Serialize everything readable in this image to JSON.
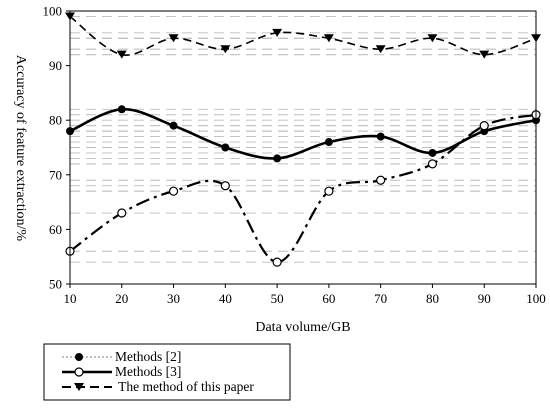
{
  "chart_data": {
    "type": "line",
    "xlabel": "Data volume/GB",
    "ylabel": "Accuracy of feature extraction/%",
    "x": [
      10,
      20,
      30,
      40,
      50,
      60,
      70,
      80,
      90,
      100
    ],
    "xlim": [
      10,
      100
    ],
    "ylim": [
      50,
      100
    ],
    "xticks": [
      "10",
      "20",
      "30",
      "40",
      "50",
      "60",
      "70",
      "80",
      "90",
      "100"
    ],
    "yticks": [
      "50",
      "60",
      "70",
      "80",
      "90",
      "100"
    ],
    "grid": "dashed reference lines",
    "legend_position": "bottom-left, outside plot",
    "series": [
      {
        "name": "Methods [2]",
        "marker": "filled-circle",
        "line_style": "solid",
        "color": "#000000",
        "values": [
          78,
          82,
          79,
          75,
          73,
          76,
          77,
          74,
          78,
          80
        ]
      },
      {
        "name": "Methods [3]",
        "marker": "open-circle",
        "line_style": "dash-dot",
        "color": "#000000",
        "values": [
          56,
          63,
          67,
          68,
          54,
          67,
          69,
          72,
          79,
          81
        ]
      },
      {
        "name": " The method of this paper",
        "marker": "filled-triangle-down",
        "line_style": "dashed",
        "color": "#000000",
        "values": [
          99,
          92,
          95,
          93,
          96,
          95,
          93,
          95,
          92,
          95
        ]
      }
    ]
  }
}
